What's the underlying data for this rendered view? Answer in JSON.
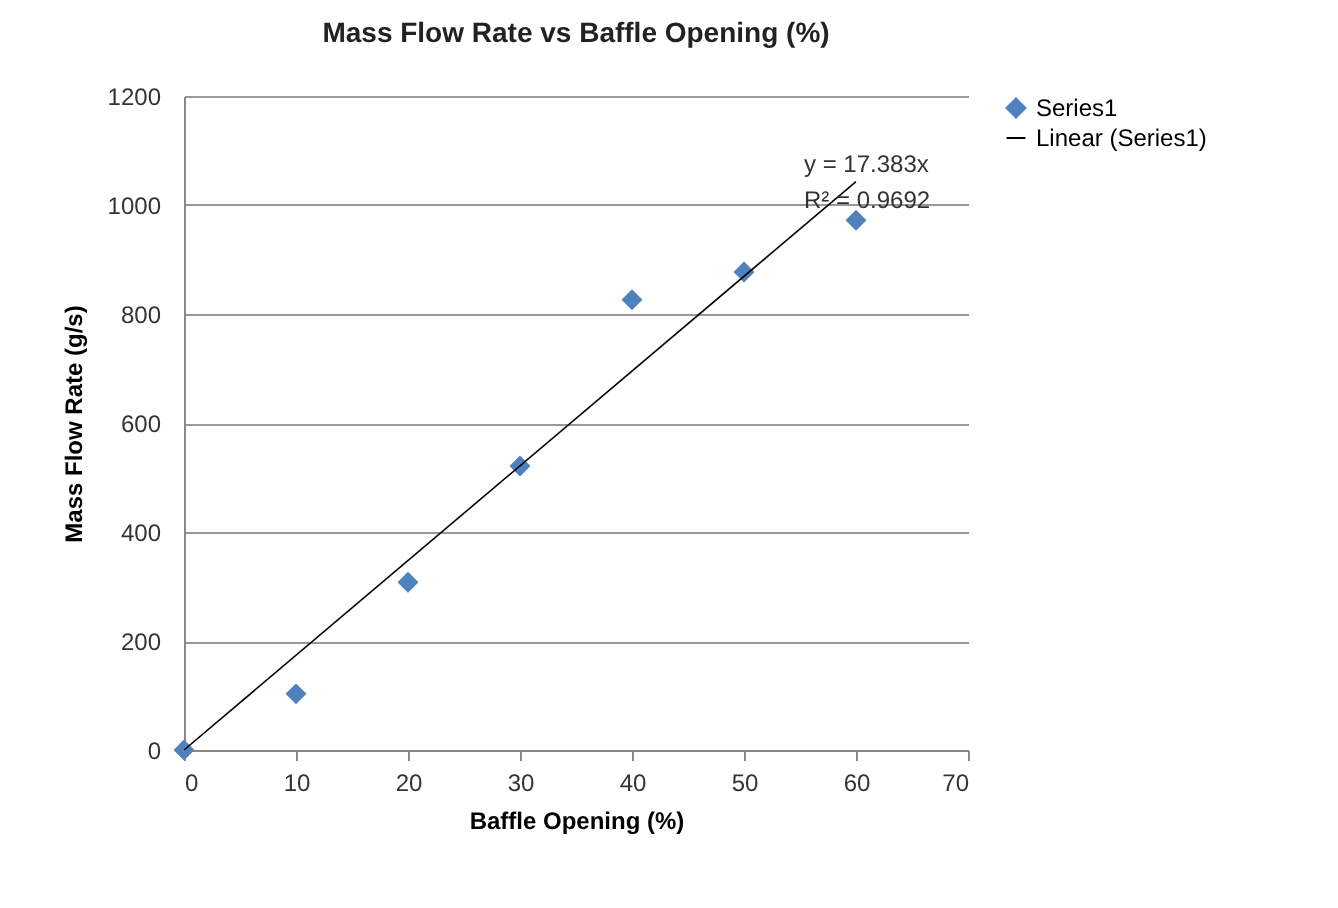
{
  "chart_data": {
    "type": "scatter",
    "title": "Mass Flow Rate vs Baffle Opening (%)",
    "xlabel": "Baffle Opening (%)",
    "ylabel": "Mass Flow Rate (g/s)",
    "x": [
      0,
      10,
      20,
      30,
      40,
      50,
      60
    ],
    "series": [
      {
        "name": "Series1",
        "color": "#4f81bd",
        "values": [
          0,
          103,
          308,
          521,
          826,
          877,
          972
        ],
        "marker": "diamond"
      },
      {
        "name": "Linear (Series1)",
        "type": "line",
        "color": "#000000",
        "x": [
          0,
          60
        ],
        "values": [
          0,
          1043
        ]
      }
    ],
    "annotations": [
      "y = 17.383x",
      "R² = 0.9692"
    ],
    "xlim": [
      0,
      70
    ],
    "xticks": [
      0,
      10,
      20,
      30,
      40,
      50,
      60,
      70
    ],
    "ylim": [
      0,
      1200
    ],
    "yticks": [
      0,
      200,
      400,
      600,
      800,
      1000,
      1200
    ],
    "grid": "y",
    "legend": "right"
  }
}
